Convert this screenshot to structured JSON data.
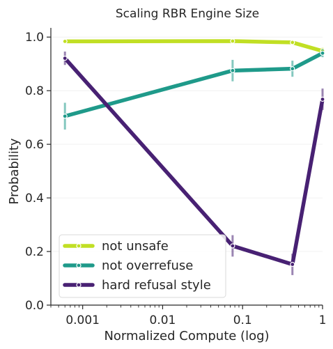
{
  "chart_data": {
    "type": "line",
    "title": "Scaling RBR Engine Size",
    "xlabel": "Normalized Compute (log)",
    "ylabel": "Probability",
    "xscale": "log",
    "xlim": [
      0.0004,
      1
    ],
    "ylim": [
      0,
      1.05
    ],
    "xticks": [
      0.001,
      0.01,
      0.1,
      1
    ],
    "xtick_labels": [
      "0.001",
      "0.01",
      "0.1",
      "1"
    ],
    "yticks": [
      0,
      0.2,
      0.4,
      0.6,
      0.8,
      1.0
    ],
    "ytick_labels": [
      "0.0",
      "0.2",
      "0.4",
      "0.6",
      "0.8",
      "1.0"
    ],
    "grid": "horizontal light",
    "legend_position": "lower-left",
    "series": [
      {
        "name": "not unsafe",
        "color": "#c1df24",
        "x": [
          0.0006,
          0.075,
          0.42,
          1
        ],
        "values": [
          0.984,
          0.985,
          0.98,
          0.948
        ],
        "err": [
          0.005,
          0.005,
          0.008,
          0.012
        ]
      },
      {
        "name": "not overrefuse",
        "color": "#1f9a8a",
        "x": [
          0.0006,
          0.075,
          0.42,
          1
        ],
        "values": [
          0.705,
          0.875,
          0.882,
          0.94
        ],
        "err": [
          0.05,
          0.04,
          0.03,
          0.015
        ]
      },
      {
        "name": "hard refusal style",
        "color": "#482173",
        "x": [
          0.0006,
          0.075,
          0.42,
          1
        ],
        "values": [
          0.921,
          0.221,
          0.152,
          0.768
        ],
        "err": [
          0.025,
          0.04,
          0.04,
          0.04
        ]
      }
    ]
  }
}
